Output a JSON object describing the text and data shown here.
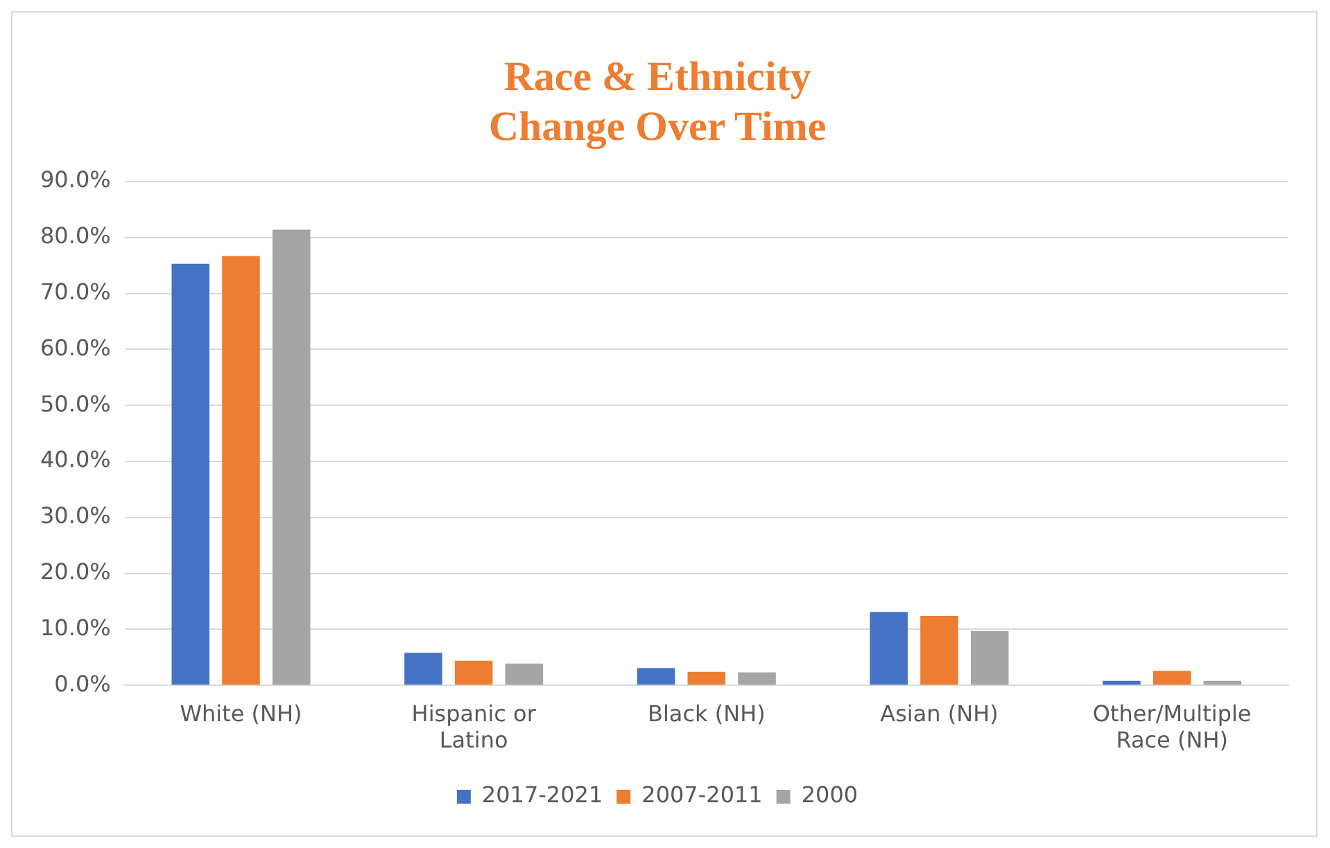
{
  "chart_data": {
    "type": "bar",
    "title": "Race & Ethnicity\nChange Over Time",
    "categories": [
      "White (NH)",
      "Hispanic or\nLatino",
      "Black (NH)",
      "Asian (NH)",
      "Other/Multiple\nRace (NH)"
    ],
    "series": [
      {
        "name": "2017-2021",
        "color": "#4472c4",
        "values": [
          75.3,
          5.8,
          3.1,
          13.1,
          0.8
        ]
      },
      {
        "name": "2007-2011",
        "color": "#ed7d31",
        "values": [
          76.7,
          4.4,
          2.4,
          12.4,
          2.6
        ]
      },
      {
        "name": "2000",
        "color": "#a5a5a5",
        "values": [
          81.4,
          3.9,
          2.3,
          9.7,
          0.8
        ]
      }
    ],
    "ylim": [
      0,
      90
    ],
    "yticks": [
      {
        "value": 0,
        "label": "0.0%"
      },
      {
        "value": 10,
        "label": "10.0%"
      },
      {
        "value": 20,
        "label": "20.0%"
      },
      {
        "value": 30,
        "label": "30.0%"
      },
      {
        "value": 40,
        "label": "40.0%"
      },
      {
        "value": 50,
        "label": "50.0%"
      },
      {
        "value": 60,
        "label": "60.0%"
      },
      {
        "value": 70,
        "label": "70.0%"
      },
      {
        "value": 80,
        "label": "80.0%"
      },
      {
        "value": 90,
        "label": "90.0%"
      }
    ],
    "grid": "y",
    "legend": "bottom"
  }
}
